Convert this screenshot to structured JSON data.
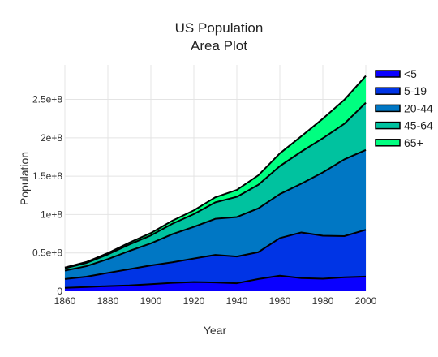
{
  "chart_data": {
    "type": "area",
    "stacked": true,
    "title_lines": [
      "US Population",
      "Area Plot"
    ],
    "xlabel": "Year",
    "ylabel": "Population",
    "x": [
      1860,
      1870,
      1880,
      1890,
      1900,
      1910,
      1920,
      1930,
      1940,
      1950,
      1960,
      1970,
      1980,
      1990,
      2000
    ],
    "xlim": [
      1860,
      2000
    ],
    "ylim": [
      0,
      295000000
    ],
    "x_ticks": [
      1860,
      1880,
      1900,
      1920,
      1940,
      1960,
      1980,
      2000
    ],
    "x_tick_labels": [
      "1860",
      "1880",
      "1900",
      "1920",
      "1940",
      "1960",
      "1980",
      "2000"
    ],
    "y_ticks": [
      0,
      50000000,
      100000000,
      150000000,
      200000000,
      250000000
    ],
    "y_tick_labels": [
      "0",
      "0.5e+8",
      "1e+8",
      "1.5e+8",
      "2e+8",
      "2.5e+8"
    ],
    "grid": true,
    "legend_position": "top-right",
    "series": [
      {
        "name": "<5",
        "color": "#0a00ff",
        "values": [
          4500000,
          5500000,
          6800000,
          7600000,
          9200000,
          11000000,
          12000000,
          11500000,
          10500000,
          16000000,
          20300000,
          17200000,
          16400000,
          18300000,
          19200000
        ]
      },
      {
        "name": "5-19",
        "color": "#0034e5",
        "values": [
          11500000,
          13500000,
          17200000,
          21200000,
          24500000,
          26800000,
          30700000,
          36000000,
          34800000,
          35000000,
          49000000,
          59500000,
          56000000,
          53600000,
          61000000
        ]
      },
      {
        "name": "20-44",
        "color": "#0077c4",
        "values": [
          11000000,
          13700000,
          18000000,
          23800000,
          28700000,
          36700000,
          41300000,
          47000000,
          51500000,
          57000000,
          57400000,
          63500000,
          82500000,
          100000000,
          104000000
        ]
      },
      {
        "name": "45-64",
        "color": "#00c29f",
        "values": [
          3000000,
          4300000,
          6100000,
          8400000,
          10400000,
          13500000,
          16600000,
          21400000,
          26300000,
          30800000,
          36400000,
          41800000,
          44500000,
          46400000,
          61500000
        ]
      },
      {
        "name": "65+",
        "color": "#00ff80",
        "values": [
          1000000,
          1200000,
          1700000,
          2400000,
          3100000,
          4000000,
          4900000,
          6600000,
          9000000,
          12300000,
          16600000,
          20000000,
          25500000,
          31200000,
          35000000
        ]
      }
    ]
  }
}
